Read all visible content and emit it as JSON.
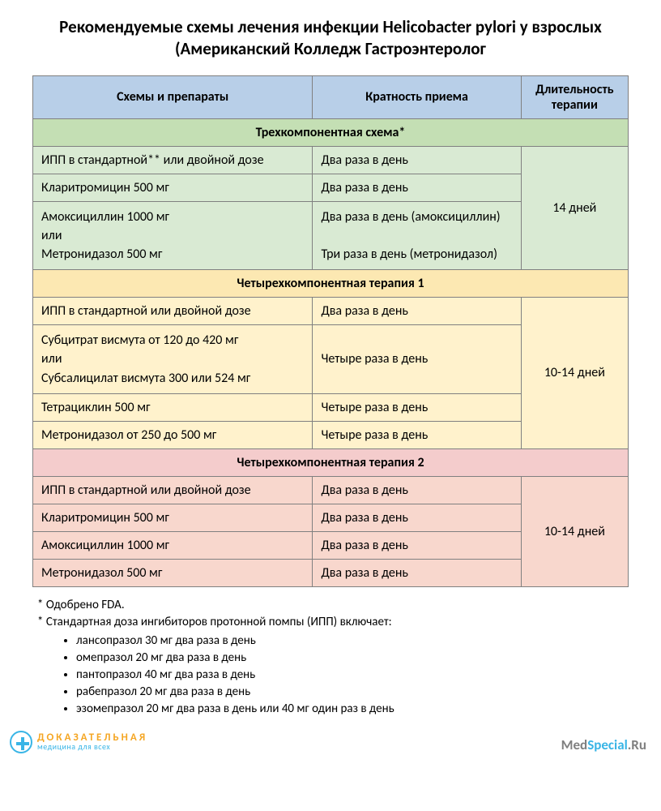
{
  "title": "Рекомендуемые схемы лечения инфекции Helicobacter pylori у взрослых (Американский Колледж Гастроэнтеролог",
  "colors": {
    "header_bg": "#b8cfe8",
    "border": "#808080",
    "section1_header_bg": "#c4dfb4",
    "section1_row_bg": "#d9ead3",
    "section2_header_bg": "#fce8b2",
    "section2_row_bg": "#fff2cc",
    "section3_header_bg": "#f4cccc",
    "section3_row_bg": "#f8d7cd",
    "brand_blue": "#39b5e6",
    "brand_orange": "#f5a623",
    "site_gray": "#808080"
  },
  "headers": {
    "drugs": "Схемы и препараты",
    "frequency": "Кратность приема",
    "duration": "Длительность терапии"
  },
  "sections": [
    {
      "title": "Трехкомпонентная схема*",
      "duration": "14 дней",
      "header_bg_key": "section1_header_bg",
      "row_bg_key": "section1_row_bg",
      "rows": [
        {
          "drug": "ИПП в стандартной** или двойной дозе",
          "freq": "Два раза в день"
        },
        {
          "drug": "Кларитромицин 500 мг",
          "freq": "Два раза в день"
        },
        {
          "drug": "Амоксициллин 1000 мг\nили\nМетронидазол 500 мг",
          "freq": "Два раза в день (амоксициллин)\n\nТри раза в день (метронидазол)"
        }
      ]
    },
    {
      "title": "Четырехкомпонентная терапия 1",
      "duration": "10-14 дней",
      "header_bg_key": "section2_header_bg",
      "row_bg_key": "section2_row_bg",
      "rows": [
        {
          "drug": "ИПП в стандартной или двойной дозе",
          "freq": "Два раза в день"
        },
        {
          "drug": "Субцитрат висмута от 120 до 420 мг\nили\nСубсалицилат висмута 300 или 524 мг",
          "freq": "Четыре раза в день"
        },
        {
          "drug": "Тетрациклин 500 мг",
          "freq": "Четыре раза в день"
        },
        {
          "drug": "Метронидазол от 250 до 500 мг",
          "freq": "Четыре раза в день"
        }
      ]
    },
    {
      "title": "Четырехкомпонентная терапия 2",
      "duration": "10-14 дней",
      "header_bg_key": "section3_header_bg",
      "row_bg_key": "section3_row_bg",
      "rows": [
        {
          "drug": "ИПП в стандартной или двойной дозе",
          "freq": "Два раза в день"
        },
        {
          "drug": "Кларитромицин 500 мг",
          "freq": "Два раза в день"
        },
        {
          "drug": "Амоксициллин 1000 мг",
          "freq": "Два раза в день"
        },
        {
          "drug": "Метронидазол 500 мг",
          "freq": "Два раза в день"
        }
      ]
    }
  ],
  "footnotes": {
    "line1": "* Одобрено FDA.",
    "line2": "* Стандартная доза ингибиторов протонной помпы (ИПП) включает:",
    "items": [
      "лансопразол 30 мг два раза в день",
      "омепразол 20 мг два раза в день",
      "пантопразол 40 мг два раза в день",
      "рабепразол 20 мг два раза в день",
      "эзомепразол 20 мг два раза в день или 40 мг один раз в день"
    ]
  },
  "footer": {
    "brand_line1": "ДОКАЗАТЕЛЬНАЯ",
    "brand_line2": "медицина для всех",
    "site_prefix": "Med",
    "site_accent": "Special",
    "site_suffix": ".Ru"
  }
}
